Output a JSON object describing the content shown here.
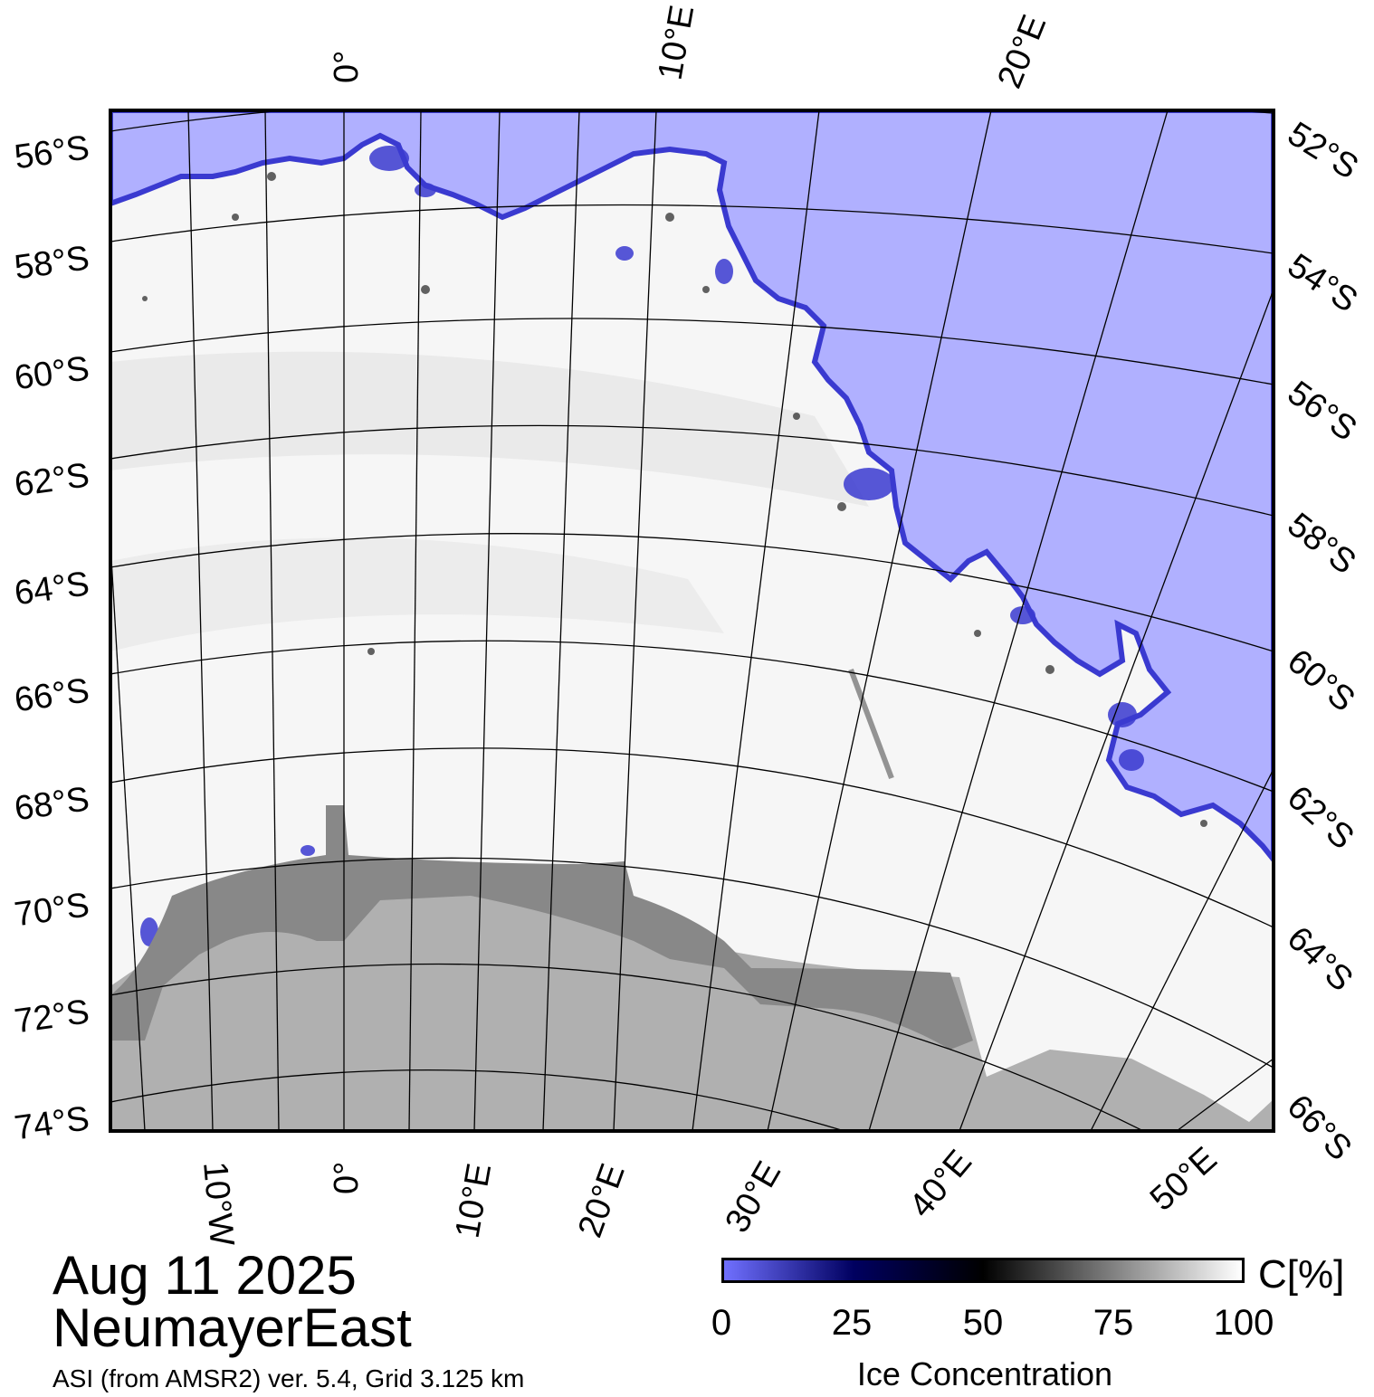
{
  "title": {
    "date": "Aug 11 2025",
    "region": "NeumayerEast",
    "source": "ASI (from AMSR2) ver. 5.4,  Grid 3.125 km"
  },
  "map": {
    "left_lat_labels": [
      "56°S",
      "58°S",
      "60°S",
      "62°S",
      "64°S",
      "66°S",
      "68°S",
      "70°S",
      "72°S",
      "74°S"
    ],
    "right_lat_labels": [
      "52°S",
      "54°S",
      "56°S",
      "58°S",
      "60°S",
      "62°S",
      "64°S",
      "66°S"
    ],
    "top_lon_labels": [
      "0°",
      "10°E",
      "20°E"
    ],
    "bottom_lon_labels": [
      "10°W",
      "0°",
      "10°E",
      "20°E",
      "30°E",
      "40°E",
      "50°E"
    ],
    "colors": {
      "open_water": "#b0b0ff",
      "ice_edge": "#3a3ad0",
      "sea_ice": "#f6f6f6",
      "ice_shelf": "#888888",
      "land": "#b0b0b0",
      "grid": "#000000"
    }
  },
  "colorbar": {
    "label": "Ice Concentration",
    "unit": "C[%]",
    "ticks": [
      "0",
      "25",
      "50",
      "75",
      "100"
    ],
    "colors": [
      "#7070ff",
      "#000060",
      "#000000",
      "#808080",
      "#ffffff"
    ]
  }
}
